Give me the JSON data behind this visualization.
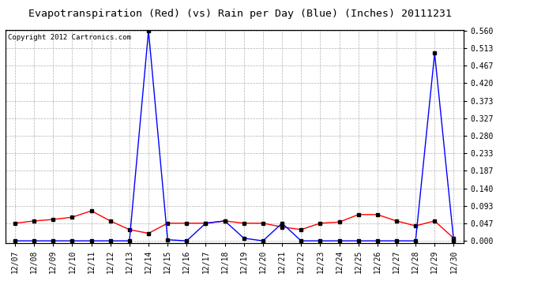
{
  "title": "Evapotranspiration (Red) (vs) Rain per Day (Blue) (Inches) 20111231",
  "copyright": "Copyright 2012 Cartronics.com",
  "x_labels": [
    "12/07",
    "12/08",
    "12/09",
    "12/10",
    "12/11",
    "12/12",
    "12/13",
    "12/14",
    "12/15",
    "12/16",
    "12/17",
    "12/18",
    "12/19",
    "12/20",
    "12/21",
    "12/22",
    "12/23",
    "12/24",
    "12/25",
    "12/26",
    "12/27",
    "12/28",
    "12/29",
    "12/30"
  ],
  "red_data": [
    0.047,
    0.053,
    0.057,
    0.063,
    0.08,
    0.053,
    0.03,
    0.02,
    0.047,
    0.047,
    0.047,
    0.053,
    0.047,
    0.047,
    0.037,
    0.03,
    0.047,
    0.05,
    0.07,
    0.07,
    0.053,
    0.04,
    0.053,
    0.007
  ],
  "blue_data": [
    0.0,
    0.0,
    0.0,
    0.0,
    0.0,
    0.0,
    0.0,
    0.56,
    0.003,
    0.0,
    0.047,
    0.053,
    0.007,
    0.0,
    0.047,
    0.0,
    0.0,
    0.0,
    0.0,
    0.0,
    0.0,
    0.0,
    0.5,
    0.0
  ],
  "ylim": [
    0.0,
    0.56
  ],
  "yticks": [
    0.0,
    0.047,
    0.093,
    0.14,
    0.187,
    0.233,
    0.28,
    0.327,
    0.373,
    0.42,
    0.467,
    0.513,
    0.56
  ],
  "background_color": "#ffffff",
  "grid_color": "#b0b0b0",
  "red_color": "#ff0000",
  "blue_color": "#0000ff",
  "title_fontsize": 9.5,
  "tick_fontsize": 7,
  "copyright_fontsize": 6.5
}
